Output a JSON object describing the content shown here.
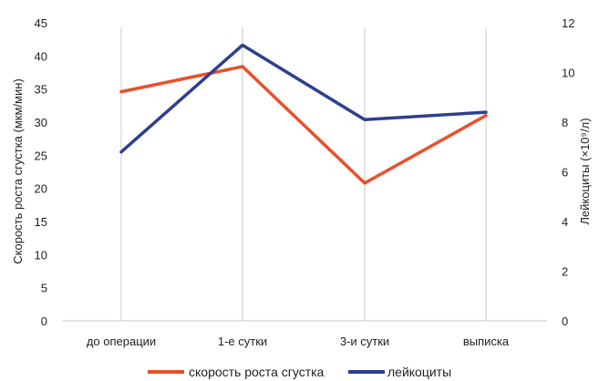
{
  "chart_data": {
    "type": "line",
    "categories": [
      "до операции",
      "1-е сутки",
      "3-и сутки",
      "выписка"
    ],
    "y_left": {
      "label": "Скорость роста сгустка (мкм/мин)",
      "range": [
        0,
        45
      ],
      "ticks": [
        "0",
        "5",
        "10",
        "15",
        "20",
        "25",
        "30",
        "35",
        "40",
        "45"
      ]
    },
    "y_right": {
      "label": "Лейкоциты (×10⁹/л)",
      "range": [
        0,
        12
      ],
      "ticks": [
        "0",
        "2",
        "4",
        "6",
        "8",
        "10",
        "12"
      ]
    },
    "series": [
      {
        "name": "скорость роста сгустка",
        "axis": "left",
        "color": "#e8502a",
        "values": [
          34.6,
          38.4,
          20.8,
          31.0
        ]
      },
      {
        "name": "лейкоциты",
        "axis": "right",
        "color": "#2e3f8f",
        "values": [
          6.8,
          11.1,
          8.1,
          8.4
        ]
      }
    ],
    "grid": {
      "vertical": true,
      "color": "#c8c8c8"
    },
    "legend": {
      "position": "bottom"
    }
  }
}
